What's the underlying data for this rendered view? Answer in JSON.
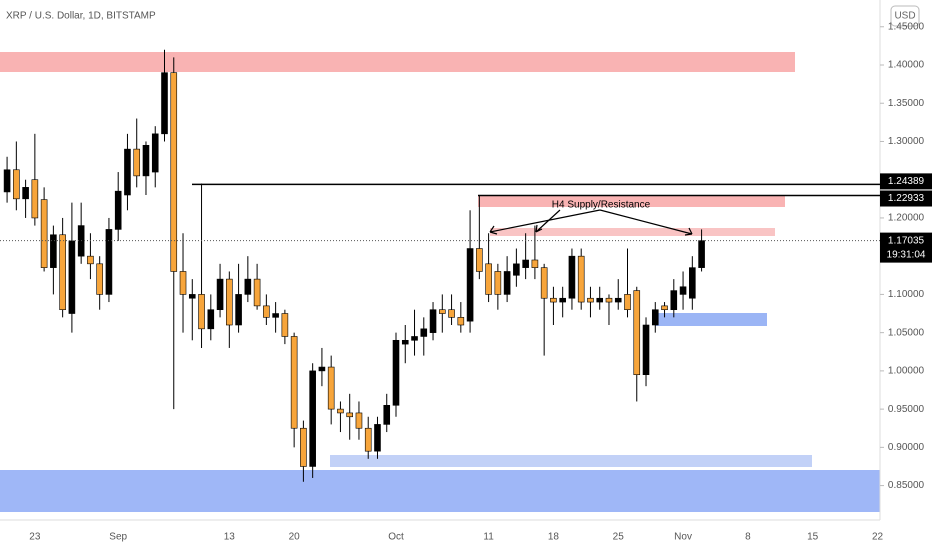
{
  "chart_data": {
    "type": "candlestick",
    "title": "XRP / U.S. Dollar, 1D, BITSTAMP",
    "currency": "USD",
    "up_color": "#000000",
    "down_color": "#f7a53b",
    "categories": [
      null,
      null,
      null,
      "23",
      null,
      null,
      null,
      null,
      null,
      null,
      null,
      null,
      "Sep",
      null,
      null,
      null,
      null,
      null,
      null,
      null,
      null,
      null,
      null,
      null,
      "13",
      null,
      null,
      null,
      null,
      null,
      null,
      "20",
      null,
      null,
      null,
      null,
      null,
      null,
      null,
      null,
      null,
      null,
      "Oct",
      null,
      null,
      null,
      null,
      null,
      null,
      null,
      null,
      null,
      "11",
      null,
      null,
      null,
      null,
      null,
      null,
      "18",
      null,
      null,
      null,
      null,
      null,
      null,
      "25",
      null,
      null,
      null,
      null,
      null,
      null,
      "Nov",
      null,
      null,
      null,
      null,
      null,
      null,
      "8",
      null,
      null,
      null,
      null,
      null,
      null,
      "15",
      null,
      null,
      null,
      null,
      null,
      null,
      "22"
    ],
    "open": [
      1.234,
      1.263,
      1.225,
      1.25,
      1.224,
      1.135,
      1.178,
      1.075,
      1.15,
      1.15,
      1.14,
      1.1,
      1.185,
      1.23,
      1.29,
      1.255,
      1.26,
      1.31,
      1.39,
      1.13,
      1.095,
      1.1,
      1.055,
      1.08,
      1.12,
      1.06,
      1.1,
      1.12,
      1.085,
      1.07,
      1.075,
      1.045,
      0.925,
      0.875,
      1.0,
      1.005,
      0.95,
      0.945,
      0.945,
      0.925,
      0.895,
      0.93,
      0.955,
      1.035,
      1.04,
      1.045,
      1.05,
      1.08,
      1.08,
      1.07,
      1.065,
      1.16,
      1.14,
      1.13,
      1.1,
      1.125,
      1.135,
      1.145,
      1.135,
      1.095,
      1.09,
      1.095,
      1.15,
      1.095,
      1.09,
      1.095,
      1.09,
      1.1,
      1.105,
      0.995,
      1.06,
      1.085,
      1.08,
      1.1,
      1.095,
      1.135,
      null,
      null,
      null,
      null,
      null,
      null,
      null,
      null,
      null,
      null,
      null,
      null,
      null,
      null,
      null,
      null,
      null,
      null,
      null
    ],
    "high": [
      1.28,
      1.3,
      1.25,
      1.31,
      1.24,
      1.19,
      1.2,
      1.22,
      1.22,
      1.18,
      1.15,
      1.2,
      1.26,
      1.31,
      1.33,
      1.3,
      1.32,
      1.42,
      1.41,
      1.18,
      1.12,
      1.245,
      1.1,
      1.14,
      1.13,
      1.14,
      1.15,
      1.14,
      1.1,
      1.09,
      1.08,
      1.05,
      0.935,
      1.01,
      1.03,
      1.02,
      0.96,
      0.97,
      0.96,
      0.94,
      0.94,
      0.97,
      1.05,
      1.06,
      1.08,
      1.07,
      1.09,
      1.1,
      1.1,
      1.09,
      1.21,
      1.23,
      1.18,
      1.14,
      1.15,
      1.16,
      1.18,
      1.19,
      1.14,
      1.11,
      1.11,
      1.16,
      1.16,
      1.11,
      1.11,
      1.1,
      1.12,
      1.16,
      1.11,
      1.07,
      1.09,
      1.09,
      1.12,
      1.13,
      1.15,
      1.185,
      null,
      null,
      null,
      null,
      null,
      null,
      null,
      null,
      null,
      null,
      null,
      null,
      null,
      null,
      null,
      null,
      null,
      null,
      null
    ],
    "low": [
      1.22,
      1.21,
      1.2,
      1.19,
      1.13,
      1.1,
      1.07,
      1.05,
      1.14,
      1.12,
      1.08,
      1.09,
      1.17,
      1.21,
      1.24,
      1.23,
      1.24,
      1.3,
      0.95,
      1.05,
      1.04,
      1.03,
      1.04,
      1.07,
      1.03,
      1.05,
      1.09,
      1.08,
      1.06,
      1.05,
      1.035,
      0.9,
      0.855,
      0.86,
      0.98,
      0.93,
      0.92,
      0.91,
      0.91,
      0.885,
      0.885,
      0.92,
      0.94,
      1.01,
      1.02,
      1.02,
      1.04,
      1.05,
      1.06,
      1.05,
      1.05,
      1.12,
      1.09,
      1.08,
      1.09,
      1.11,
      1.12,
      1.12,
      1.02,
      1.06,
      1.07,
      1.08,
      1.08,
      1.07,
      1.08,
      1.06,
      1.08,
      1.07,
      0.96,
      0.98,
      1.05,
      1.07,
      1.07,
      1.08,
      1.08,
      1.13,
      null,
      null,
      null,
      null,
      null,
      null,
      null,
      null,
      null,
      null,
      null,
      null,
      null,
      null,
      null,
      null,
      null,
      null,
      null
    ],
    "close": [
      1.263,
      1.225,
      1.24,
      1.2,
      1.135,
      1.178,
      1.08,
      1.17,
      1.19,
      1.14,
      1.1,
      1.185,
      1.235,
      1.29,
      1.255,
      1.295,
      1.31,
      1.39,
      1.13,
      1.1,
      1.1,
      1.055,
      1.08,
      1.12,
      1.06,
      1.1,
      1.12,
      1.085,
      1.07,
      1.075,
      1.045,
      0.925,
      0.875,
      1.0,
      1.005,
      0.95,
      0.945,
      0.94,
      0.925,
      0.895,
      0.93,
      0.955,
      1.04,
      1.04,
      1.045,
      1.055,
      1.08,
      1.075,
      1.07,
      1.06,
      1.16,
      1.13,
      1.1,
      1.1,
      1.13,
      1.14,
      1.145,
      1.135,
      1.095,
      1.09,
      1.095,
      1.15,
      1.09,
      1.09,
      1.095,
      1.09,
      1.095,
      1.08,
      0.995,
      1.06,
      1.08,
      1.08,
      1.105,
      1.11,
      1.135,
      1.17035,
      null,
      null,
      null,
      null,
      null,
      null,
      null,
      null,
      null,
      null,
      null,
      null,
      null,
      null,
      null,
      null,
      null,
      null,
      null
    ],
    "ylim": [
      0.805,
      1.485
    ],
    "yticks": [
      {
        "value": 1.45,
        "label": "1.45000"
      },
      {
        "value": 1.4,
        "label": "1.40000"
      },
      {
        "value": 1.35,
        "label": "1.35000"
      },
      {
        "value": 1.3,
        "label": "1.30000"
      },
      {
        "value": 1.2,
        "label": "1.20000"
      },
      {
        "value": 1.1,
        "label": "1.10000"
      },
      {
        "value": 1.05,
        "label": "1.05000"
      },
      {
        "value": 1.0,
        "label": "1.00000"
      },
      {
        "value": 0.95,
        "label": "0.95000"
      },
      {
        "value": 0.9,
        "label": "0.90000"
      },
      {
        "value": 0.85,
        "label": "0.85000"
      }
    ],
    "price_lines": [
      {
        "value": 1.24389,
        "label": "1.24389"
      },
      {
        "value": 1.22933,
        "label": "1.22933"
      }
    ],
    "last_price": {
      "value": 1.17035,
      "label": "1.17035"
    },
    "countdown": "19:31:04",
    "annotation": "H4 Supply/Resistance"
  }
}
